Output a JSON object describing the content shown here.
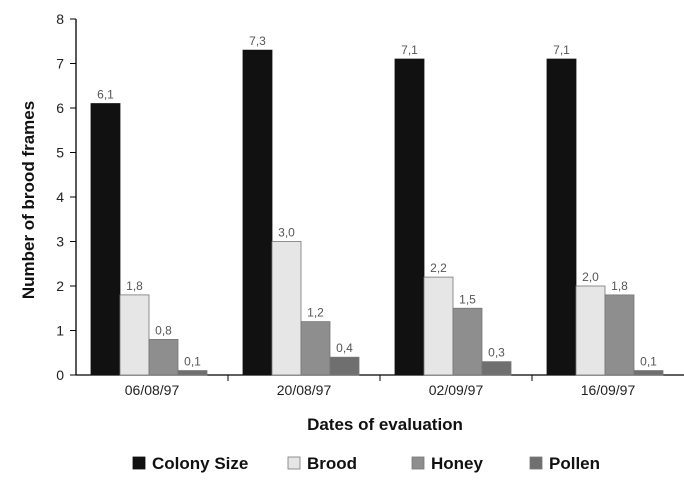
{
  "chart_data": {
    "type": "bar",
    "title": "",
    "xlabel": "Dates of evaluation",
    "ylabel": "Number of brood frames",
    "categories": [
      "06/08/97",
      "20/08/97",
      "02/09/97",
      "16/09/97"
    ],
    "ylim": [
      0,
      8
    ],
    "yticks": [
      "0",
      "1",
      "2",
      "3",
      "4",
      "5",
      "6",
      "7",
      "8"
    ],
    "grid": false,
    "legend_position": "bottom",
    "series": [
      {
        "name": "Colony Size",
        "values": [
          6.1,
          7.3,
          7.1,
          7.1
        ],
        "labels": [
          "6,1",
          "7,3",
          "7,1",
          "7,1"
        ],
        "color": "#111111"
      },
      {
        "name": "Brood",
        "values": [
          1.8,
          3.0,
          2.2,
          2.0
        ],
        "labels": [
          "1,8",
          "3,0",
          "2,2",
          "2,0"
        ],
        "color": "#e6e6e6"
      },
      {
        "name": "Honey",
        "values": [
          0.8,
          1.2,
          1.5,
          1.8
        ],
        "labels": [
          "0,8",
          "1,2",
          "1,5",
          "1,8"
        ],
        "color": "#8e8e8e"
      },
      {
        "name": "Pollen",
        "values": [
          0.1,
          0.4,
          0.3,
          0.1
        ],
        "labels": [
          "0,1",
          "0,4",
          "0,3",
          "0,1"
        ],
        "color": "#6f6f6f"
      }
    ]
  }
}
